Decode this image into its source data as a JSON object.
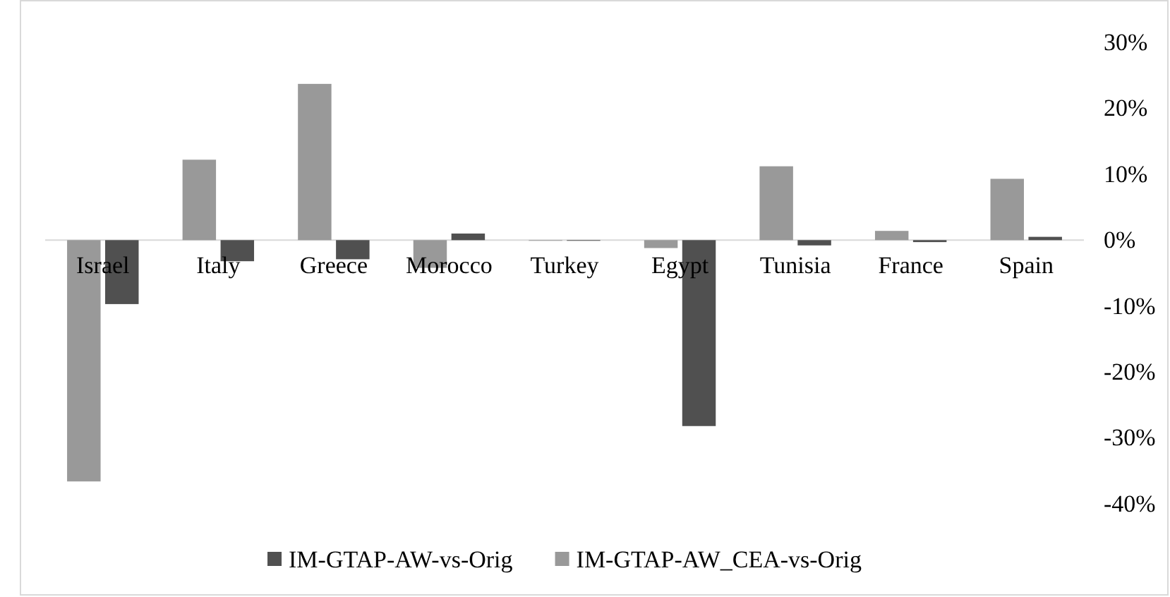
{
  "chart_data": {
    "type": "bar",
    "categories": [
      "Israel",
      "Italy",
      "Greece",
      "Morocco",
      "Turkey",
      "Egypt",
      "Tunisia",
      "France",
      "Spain"
    ],
    "series": [
      {
        "name": "IM-GTAP-AW_CEA-vs-Orig",
        "color": "#999999",
        "values": [
          -36.6,
          12.2,
          23.7,
          -4.2,
          -0.1,
          -1.2,
          11.2,
          1.4,
          9.3
        ]
      },
      {
        "name": "IM-GTAP-AW-vs-Orig",
        "color": "#505050",
        "values": [
          -9.7,
          -3.2,
          -2.9,
          1.0,
          -0.1,
          -28.2,
          -0.8,
          -0.3,
          0.5
        ]
      }
    ],
    "ylim": [
      -40,
      30
    ],
    "yticks": [
      {
        "value": 30,
        "label": "30%"
      },
      {
        "value": 20,
        "label": "20%"
      },
      {
        "value": 10,
        "label": "10%"
      },
      {
        "value": 0,
        "label": "0%"
      },
      {
        "value": -10,
        "label": "-10%"
      },
      {
        "value": -20,
        "label": "-20%"
      },
      {
        "value": -30,
        "label": "-30%"
      },
      {
        "value": -40,
        "label": "-40%"
      }
    ],
    "legend": "bottom"
  }
}
